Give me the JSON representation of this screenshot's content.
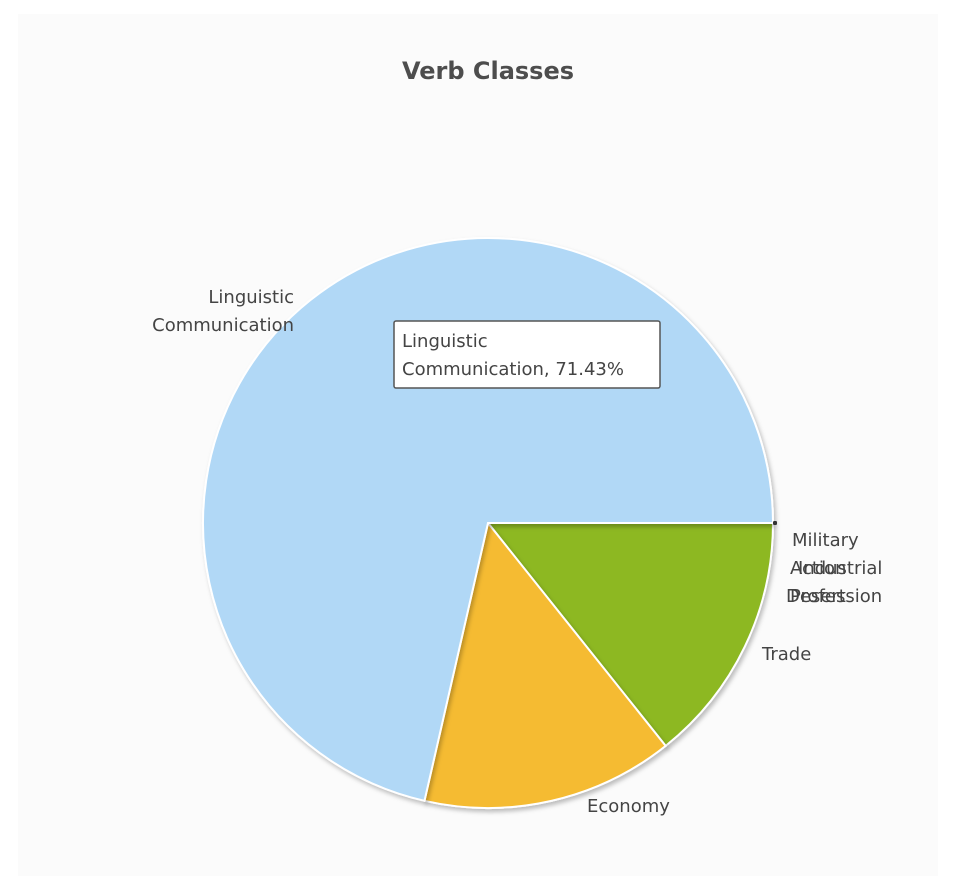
{
  "chart_data": {
    "type": "pie",
    "title": "Verb Classes",
    "slices": [
      {
        "label": "Military",
        "value": 0.0,
        "color": "#333333"
      },
      {
        "label": "Trade",
        "value": 14.29,
        "color": "#8db824"
      },
      {
        "label": "Economy",
        "value": 14.29,
        "color": "#f5bb30"
      },
      {
        "label": "Linguistic Communication",
        "value": 71.43,
        "color": "#b1d8f6"
      },
      {
        "label": "Action",
        "value": 0.0,
        "color": "#333333"
      },
      {
        "label": "Industrial",
        "value": 0.0,
        "color": "#333333"
      },
      {
        "label": "Desert",
        "value": 0.0,
        "color": "#333333"
      },
      {
        "label": "Profession",
        "value": 0.0,
        "color": "#333333"
      }
    ],
    "tooltip": {
      "line1": "Linguistic",
      "line2": "Communication, 71.43%"
    }
  }
}
